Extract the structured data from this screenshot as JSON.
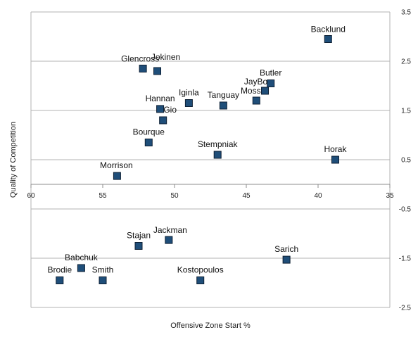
{
  "chart_data": {
    "type": "scatter",
    "title": "",
    "xlabel": "Offensive Zone Start %",
    "ylabel": "Quality of Competition",
    "xlim": [
      60,
      35
    ],
    "ylim": [
      -2.5,
      3.5
    ],
    "x_ticks": [
      60,
      55,
      50,
      45,
      40,
      35
    ],
    "y_ticks": [
      3.5,
      2.5,
      1.5,
      0.5,
      -0.5,
      -1.5,
      -2.5
    ],
    "x_tick_labels": [
      "60",
      "55",
      "50",
      "45",
      "40",
      "35"
    ],
    "y_tick_labels": [
      "3.5",
      "2.5",
      "1.5",
      "0.5",
      "-0.5",
      "-1.5",
      "-2.5"
    ],
    "x_reversed": true,
    "grid": "horizontal",
    "legend": "none",
    "marker_color": "#1f4e79",
    "marker_stroke": "#0d1f33",
    "points": [
      {
        "label": "Backlund",
        "x": 39.3,
        "y": 2.95
      },
      {
        "label": "Glencross",
        "x": 52.2,
        "y": 2.35
      },
      {
        "label": "Jokinen",
        "x": 51.2,
        "y": 2.3
      },
      {
        "label": "Butler",
        "x": 43.3,
        "y": 2.05
      },
      {
        "label": "JayBo",
        "x": 43.7,
        "y": 1.9
      },
      {
        "label": "Moss",
        "x": 44.3,
        "y": 1.7
      },
      {
        "label": "Iginla",
        "x": 49.0,
        "y": 1.65
      },
      {
        "label": "Tanguay",
        "x": 46.6,
        "y": 1.6
      },
      {
        "label": "Hannan",
        "x": 51.0,
        "y": 1.53
      },
      {
        "label": "Gio",
        "x": 50.8,
        "y": 1.3
      },
      {
        "label": "Bourque",
        "x": 51.8,
        "y": 0.85
      },
      {
        "label": "Stempniak",
        "x": 47.0,
        "y": 0.6
      },
      {
        "label": "Horak",
        "x": 38.8,
        "y": 0.5
      },
      {
        "label": "Morrison",
        "x": 54.0,
        "y": 0.17
      },
      {
        "label": "Stajan",
        "x": 52.5,
        "y": -1.25
      },
      {
        "label": "Jackman",
        "x": 50.4,
        "y": -1.13
      },
      {
        "label": "Sarich",
        "x": 42.2,
        "y": -1.53
      },
      {
        "label": "Babchuk",
        "x": 56.5,
        "y": -1.7
      },
      {
        "label": "Brodie",
        "x": 58.0,
        "y": -1.95
      },
      {
        "label": "Smith",
        "x": 55.0,
        "y": -1.95
      },
      {
        "label": "Kostopoulos",
        "x": 48.2,
        "y": -1.95
      }
    ]
  }
}
